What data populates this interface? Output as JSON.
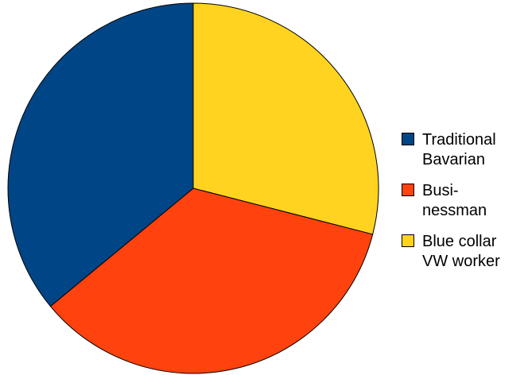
{
  "chart_data": {
    "type": "pie",
    "title": "",
    "legend_position": "right",
    "slices": [
      {
        "label": "Traditional\nBavarian",
        "value": 36,
        "color": "#004586"
      },
      {
        "label": "Busi-\nnessman",
        "value": 35,
        "color": "#ff420e"
      },
      {
        "label": "Blue collar\nVW worker",
        "value": 29,
        "color": "#ffd320"
      }
    ]
  }
}
